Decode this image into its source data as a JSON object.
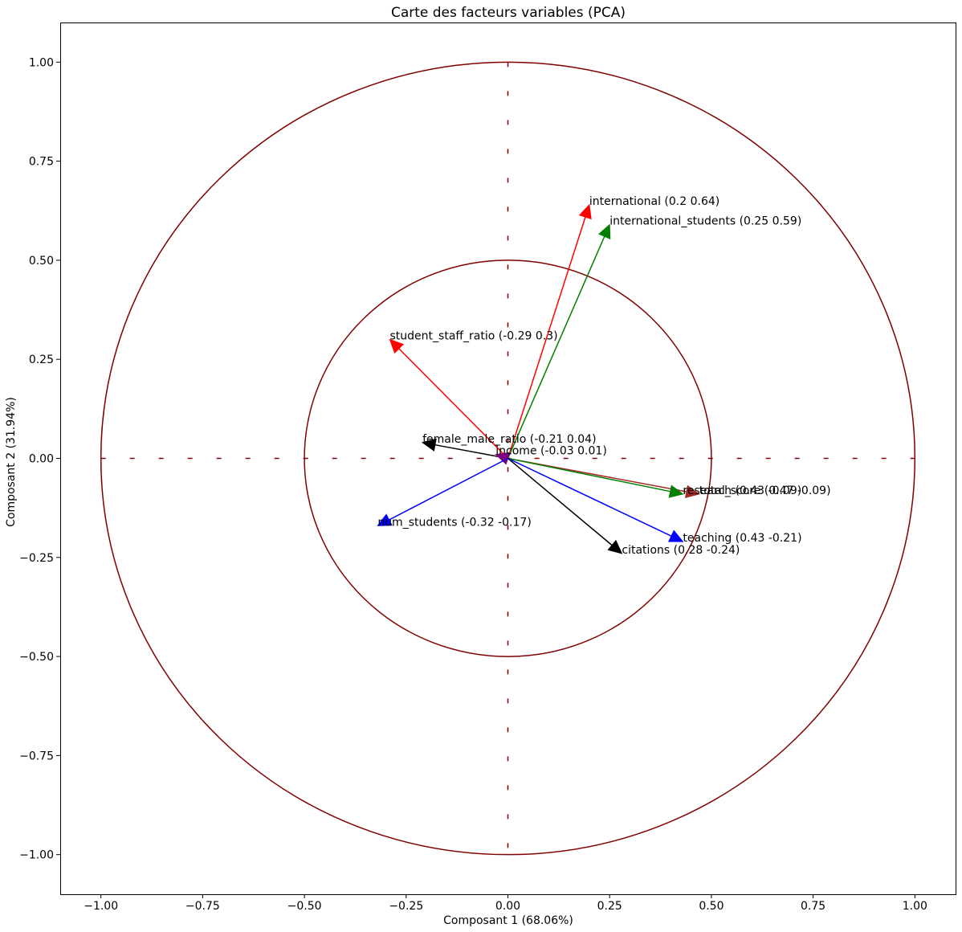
{
  "chart_data": {
    "type": "scatter",
    "title": "Carte des facteurs variables (PCA)",
    "xlabel": "Composant 1 (68.06%)",
    "ylabel": "Composant 2 (31.94%)",
    "xlim": [
      -1.1,
      1.1
    ],
    "ylim": [
      -1.1,
      1.1
    ],
    "xticks": [
      -1.0,
      -0.75,
      -0.5,
      -0.25,
      0.0,
      0.25,
      0.5,
      0.75,
      1.0
    ],
    "yticks": [
      -1.0,
      -0.75,
      -0.5,
      -0.25,
      0.0,
      0.25,
      0.5,
      0.75,
      1.0
    ],
    "xtick_labels": [
      "−1.00",
      "−0.75",
      "−0.50",
      "−0.25",
      "0.00",
      "0.25",
      "0.50",
      "0.75",
      "1.00"
    ],
    "ytick_labels": [
      "−1.00",
      "−0.75",
      "−0.50",
      "−0.25",
      "0.00",
      "0.25",
      "0.50",
      "0.75",
      "1.00"
    ],
    "grid": false,
    "circles": [
      1.0,
      0.5
    ],
    "circle_color": "#800000",
    "reference_line_color": "#800000",
    "vectors": [
      {
        "name": "international",
        "x": 0.2,
        "y": 0.64,
        "label": "international (0.2 0.64)",
        "color": "#ff0000"
      },
      {
        "name": "international_students",
        "x": 0.25,
        "y": 0.59,
        "label": "international_students (0.25 0.59)",
        "color": "#008000"
      },
      {
        "name": "student_staff_ratio",
        "x": -0.29,
        "y": 0.3,
        "label": "student_staff_ratio (-0.29 0.3)",
        "color": "#ff0000"
      },
      {
        "name": "female_male_ratio",
        "x": -0.21,
        "y": 0.04,
        "label": "female_male_ratio (-0.21 0.04)",
        "color": "#000000"
      },
      {
        "name": "income",
        "x": -0.03,
        "y": 0.01,
        "label": "income (-0.03 0.01)",
        "color": "#800080"
      },
      {
        "name": "total_score",
        "x": 0.47,
        "y": -0.09,
        "label": "total_score (0.47 -0.09)",
        "color": "#a52a2a"
      },
      {
        "name": "research",
        "x": 0.43,
        "y": -0.09,
        "label": "research (0.43 -0.09)",
        "color": "#008000"
      },
      {
        "name": "teaching",
        "x": 0.43,
        "y": -0.21,
        "label": "teaching (0.43 -0.21)",
        "color": "#0000ff"
      },
      {
        "name": "citations",
        "x": 0.28,
        "y": -0.24,
        "label": "citations (0.28 -0.24)",
        "color": "#000000"
      },
      {
        "name": "num_students",
        "x": -0.32,
        "y": -0.17,
        "label": "num_students (-0.32 -0.17)",
        "color": "#0000ff"
      }
    ]
  }
}
